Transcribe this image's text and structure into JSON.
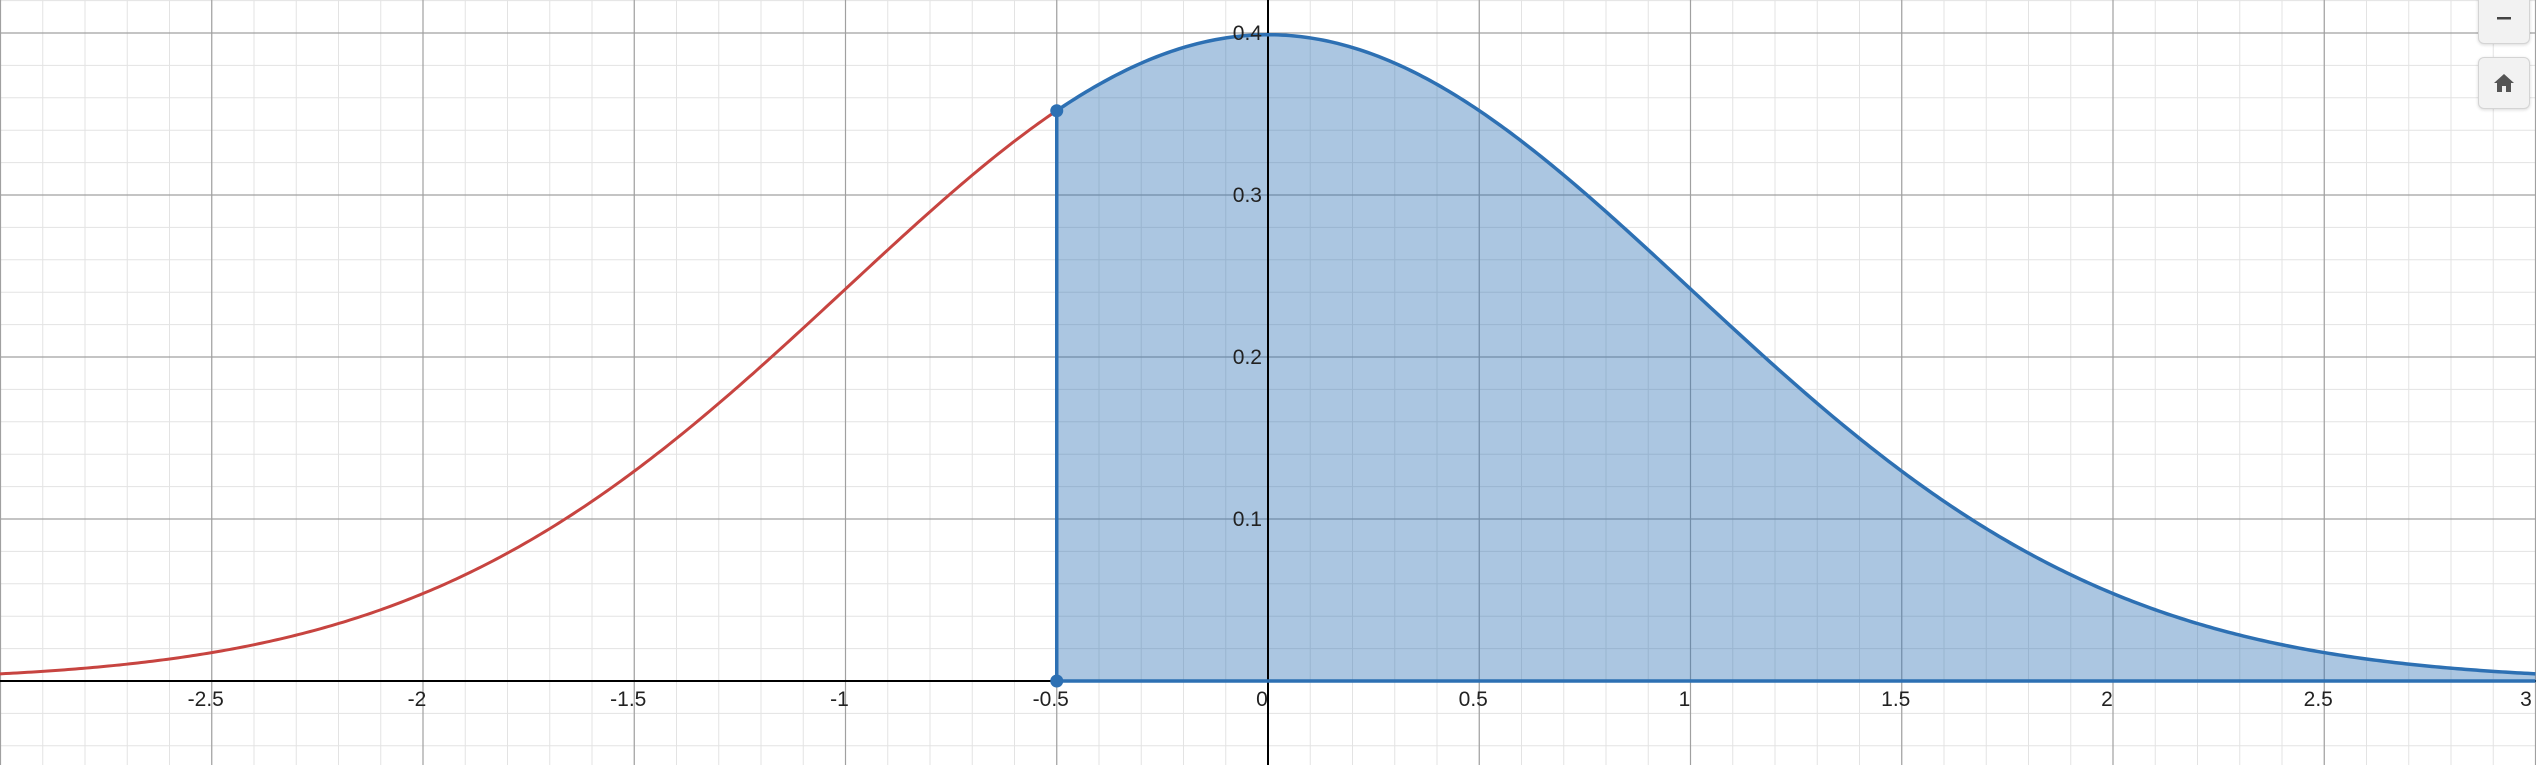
{
  "chart_data": {
    "type": "area",
    "function": "standard normal density",
    "xlim": [
      -3,
      3
    ],
    "ylim": [
      -0.05,
      0.42
    ],
    "x_ticks": [
      "-2.5",
      "-2",
      "-1.5",
      "-1",
      "-0.5",
      "0",
      "0.5",
      "1",
      "1.5",
      "2",
      "2.5",
      "3"
    ],
    "y_ticks": [
      "0.1",
      "0.2",
      "0.3",
      "0.4"
    ],
    "shaded_from_x": -0.5,
    "shaded_to_x": 3,
    "points": [
      {
        "x": -0.5,
        "y": 0.352
      },
      {
        "x": -0.5,
        "y": 0
      }
    ],
    "grid": true,
    "colors": {
      "curve": "#c74440",
      "shade_line": "#2d70b3",
      "shade_fill": "#2d70b3",
      "axis": "#000000",
      "major_grid": "#a0a0a0",
      "minor_grid": "#e3e3e3"
    }
  },
  "controls": {
    "zoom_out_icon": "minus-icon",
    "home_icon": "home-icon"
  }
}
